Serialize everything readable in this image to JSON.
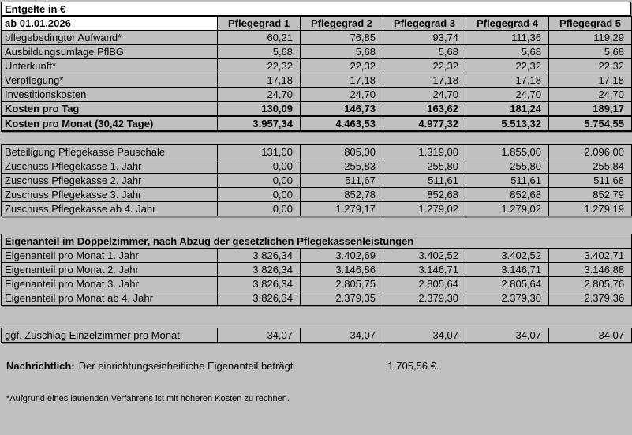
{
  "page": {
    "title": "Entgelte in €",
    "effective_label": "ab 01.01.2026",
    "columns": [
      "Pflegegrad 1",
      "Pflegegrad 2",
      "Pflegegrad 3",
      "Pflegegrad 4",
      "Pflegegrad 5"
    ]
  },
  "colors": {
    "page_background": "#c0c0c0",
    "title_background": "#ffffff",
    "border": "#000000"
  },
  "daily_costs": {
    "rows": [
      {
        "label": "pflegebedingter Aufwand*",
        "values": [
          "60,21",
          "76,85",
          "93,74",
          "111,36",
          "119,29"
        ]
      },
      {
        "label": "Ausbildungsumlage PflBG",
        "values": [
          "5,68",
          "5,68",
          "5,68",
          "5,68",
          "5,68"
        ]
      },
      {
        "label": "Unterkunft*",
        "values": [
          "22,32",
          "22,32",
          "22,32",
          "22,32",
          "22,32"
        ]
      },
      {
        "label": "Verpflegung*",
        "values": [
          "17,18",
          "17,18",
          "17,18",
          "17,18",
          "17,18"
        ]
      },
      {
        "label": "Investitionskosten",
        "values": [
          "24,70",
          "24,70",
          "24,70",
          "24,70",
          "24,70"
        ]
      },
      {
        "label": "Kosten pro Tag",
        "bold": true,
        "values": [
          "130,09",
          "146,73",
          "163,62",
          "181,24",
          "189,17"
        ]
      },
      {
        "label": "Kosten pro Monat (30,42 Tage)",
        "total": true,
        "values": [
          "3.957,34",
          "4.463,53",
          "4.977,32",
          "5.513,32",
          "5.754,55"
        ]
      }
    ]
  },
  "subsidies": {
    "rows": [
      {
        "label": "Beteiligung Pflegekasse Pauschale",
        "values": [
          "131,00",
          "805,00",
          "1.319,00",
          "1.855,00",
          "2.096,00"
        ]
      },
      {
        "label": "Zuschuss Pflegekasse 1. Jahr",
        "values": [
          "0,00",
          "255,83",
          "255,80",
          "255,80",
          "255,84"
        ]
      },
      {
        "label": "Zuschuss Pflegekasse 2. Jahr",
        "values": [
          "0,00",
          "511,67",
          "511,61",
          "511,61",
          "511,68"
        ]
      },
      {
        "label": "Zuschuss Pflegekasse 3. Jahr",
        "values": [
          "0,00",
          "852,78",
          "852,68",
          "852,68",
          "852,79"
        ]
      },
      {
        "label": "Zuschuss Pflegekasse ab 4. Jahr",
        "values": [
          "0,00",
          "1.279,17",
          "1.279,02",
          "1.279,02",
          "1.279,19"
        ]
      }
    ]
  },
  "own_share": {
    "heading": "Eigenanteil im Doppelzimmer, nach Abzug der gesetzlichen Pflegekassenleistungen",
    "rows": [
      {
        "label": "Eigenanteil pro Monat 1. Jahr",
        "values": [
          "3.826,34",
          "3.402,69",
          "3.402,52",
          "3.402,52",
          "3.402,71"
        ]
      },
      {
        "label": "Eigenanteil pro Monat 2. Jahr",
        "values": [
          "3.826,34",
          "3.146,86",
          "3.146,71",
          "3.146,71",
          "3.146,88"
        ]
      },
      {
        "label": "Eigenanteil pro Monat 3. Jahr",
        "values": [
          "3.826,34",
          "2.805,75",
          "2.805,64",
          "2.805,64",
          "2.805,76"
        ]
      },
      {
        "label": "Eigenanteil pro Monat ab 4. Jahr",
        "values": [
          "3.826,34",
          "2.379,35",
          "2.379,30",
          "2.379,30",
          "2.379,36"
        ]
      }
    ]
  },
  "single_room": {
    "rows": [
      {
        "label": "ggf. Zuschlag Einzelzimmer pro Monat",
        "values": [
          "34,07",
          "34,07",
          "34,07",
          "34,07",
          "34,07"
        ]
      }
    ]
  },
  "note": {
    "bold_label": "Nachrichtlich:",
    "text": "Der einrichtungseinheitliche Eigenanteil beträgt",
    "amount": "1.705,56 €."
  },
  "footnote": "*Aufgrund eines laufenden Verfahrens ist mit höheren Kosten zu rechnen."
}
